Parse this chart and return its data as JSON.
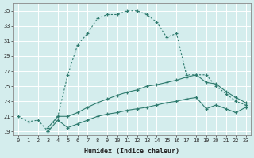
{
  "xlabel": "Humidex (Indice chaleur)",
  "xlim": [
    -0.5,
    23.5
  ],
  "ylim": [
    18.5,
    36
  ],
  "xticks": [
    0,
    1,
    2,
    3,
    4,
    5,
    6,
    7,
    8,
    9,
    10,
    11,
    12,
    13,
    14,
    15,
    16,
    17,
    18,
    19,
    20,
    21,
    22,
    23
  ],
  "yticks": [
    19,
    21,
    23,
    25,
    27,
    29,
    31,
    33,
    35
  ],
  "bg_color": "#d4eded",
  "grid_color": "#ffffff",
  "line_color": "#2e7b6e",
  "line1_x": [
    0,
    1,
    2,
    3,
    4,
    5,
    6,
    7,
    8,
    9,
    10,
    11,
    12,
    13,
    14,
    15,
    16,
    17,
    18,
    19,
    20,
    21,
    22,
    23
  ],
  "line1_y": [
    21.0,
    20.3,
    20.5,
    19.0,
    21.0,
    26.5,
    30.5,
    32.0,
    34.0,
    34.5,
    34.5,
    35.0,
    35.0,
    34.5,
    33.5,
    31.5,
    32.0,
    26.5,
    26.5,
    26.5,
    25.0,
    24.0,
    23.0,
    22.5
  ],
  "line2_x": [
    3,
    4,
    5,
    6,
    7,
    8,
    9,
    10,
    11,
    12,
    13,
    14,
    15,
    16,
    17,
    18,
    19,
    20,
    21,
    22,
    23
  ],
  "line2_y": [
    19.5,
    21.0,
    21.0,
    21.5,
    22.2,
    22.8,
    23.3,
    23.8,
    24.2,
    24.5,
    25.0,
    25.2,
    25.5,
    25.8,
    26.2,
    26.5,
    25.5,
    25.3,
    24.3,
    23.5,
    22.8
  ],
  "line3_x": [
    3,
    4,
    5,
    6,
    7,
    8,
    9,
    10,
    11,
    12,
    13,
    14,
    15,
    16,
    17,
    18,
    19,
    20,
    21,
    22,
    23
  ],
  "line3_y": [
    19.0,
    20.5,
    19.5,
    20.0,
    20.5,
    21.0,
    21.3,
    21.5,
    21.8,
    22.0,
    22.2,
    22.5,
    22.8,
    23.0,
    23.3,
    23.5,
    22.0,
    22.5,
    22.0,
    21.5,
    22.2
  ]
}
